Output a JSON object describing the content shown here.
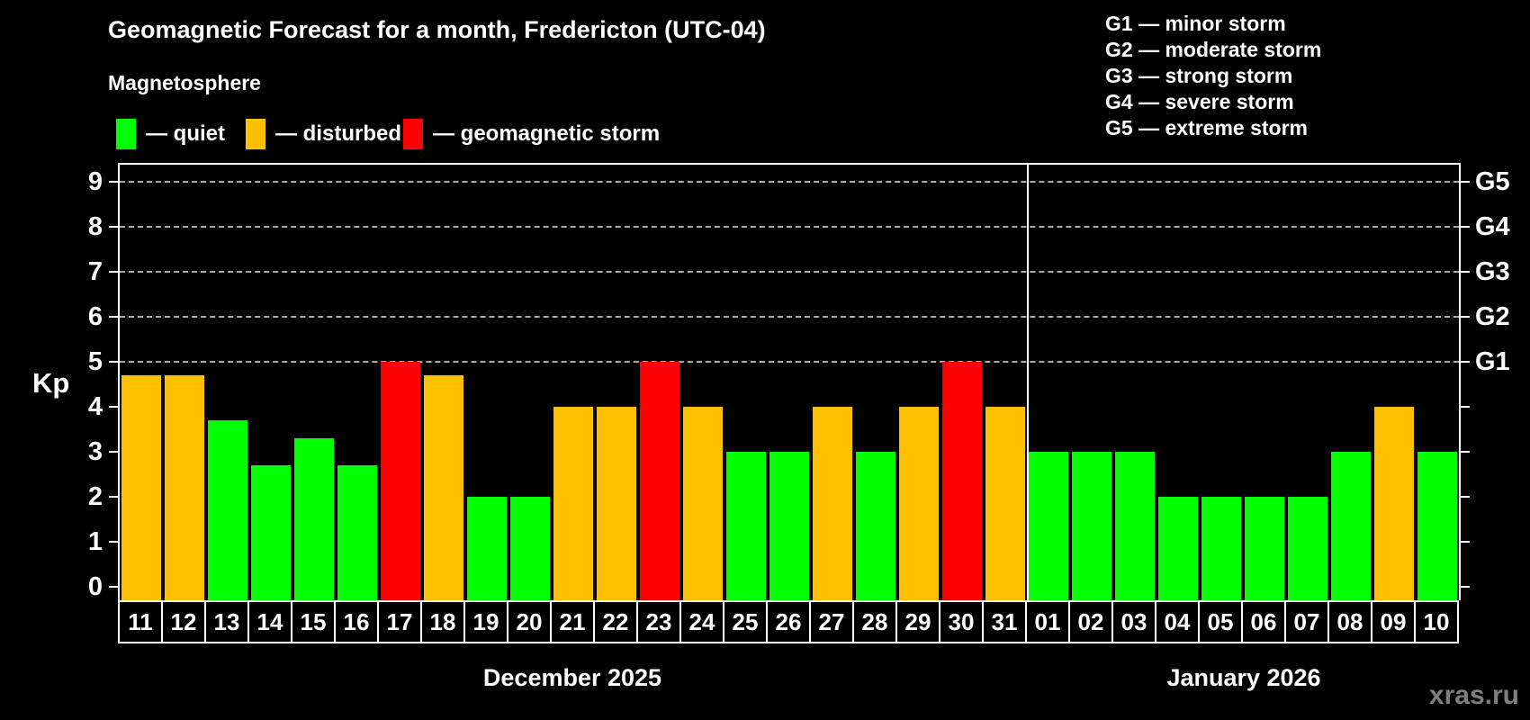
{
  "title": "Geomagnetic Forecast for a month, Fredericton (UTC-04)",
  "subtitle": "Magnetosphere",
  "legend": {
    "items": [
      {
        "key": "quiet",
        "label": "— quiet",
        "color": "#00ff00"
      },
      {
        "key": "disturbed",
        "label": "— disturbed",
        "color": "#ffc000"
      },
      {
        "key": "storm",
        "label": "— geomagnetic storm",
        "color": "#ff0000"
      }
    ]
  },
  "g_legend": {
    "items": [
      "G1 — minor storm",
      "G2 — moderate storm",
      "G3 — strong storm",
      "G4 — severe storm",
      "G5 — extreme storm"
    ]
  },
  "axis": {
    "ylabel": "Kp",
    "yticks": [
      0,
      1,
      2,
      3,
      4,
      5,
      6,
      7,
      8,
      9
    ],
    "gridlines_at": [
      5,
      6,
      7,
      8,
      9
    ],
    "right_labels": [
      {
        "kp": 5,
        "label": "G1"
      },
      {
        "kp": 6,
        "label": "G2"
      },
      {
        "kp": 7,
        "label": "G3"
      },
      {
        "kp": 8,
        "label": "G4"
      },
      {
        "kp": 9,
        "label": "G5"
      }
    ]
  },
  "watermark": "xras.ru",
  "chart_data": {
    "type": "bar",
    "title": "Geomagnetic Forecast for a month, Fredericton (UTC-04)",
    "subtitle": "Magnetosphere",
    "ylabel": "Kp",
    "ylim": [
      0,
      9.4
    ],
    "grid": "dashed horizontal lines at Kp 5,6,7,8,9 (storm levels G1–G5)",
    "legend_position": "top",
    "colors": {
      "quiet": "#00ff00",
      "disturbed": "#ffc000",
      "storm": "#ff0000"
    },
    "months": [
      {
        "label": "December 2025",
        "days": [
          {
            "day": "11",
            "kp": 4.7,
            "status": "disturbed"
          },
          {
            "day": "12",
            "kp": 4.7,
            "status": "disturbed"
          },
          {
            "day": "13",
            "kp": 3.7,
            "status": "quiet"
          },
          {
            "day": "14",
            "kp": 2.7,
            "status": "quiet"
          },
          {
            "day": "15",
            "kp": 3.3,
            "status": "quiet"
          },
          {
            "day": "16",
            "kp": 2.7,
            "status": "quiet"
          },
          {
            "day": "17",
            "kp": 5.0,
            "status": "storm"
          },
          {
            "day": "18",
            "kp": 4.7,
            "status": "disturbed"
          },
          {
            "day": "19",
            "kp": 2.0,
            "status": "quiet"
          },
          {
            "day": "20",
            "kp": 2.0,
            "status": "quiet"
          },
          {
            "day": "21",
            "kp": 4.0,
            "status": "disturbed"
          },
          {
            "day": "22",
            "kp": 4.0,
            "status": "disturbed"
          },
          {
            "day": "23",
            "kp": 5.0,
            "status": "storm"
          },
          {
            "day": "24",
            "kp": 4.0,
            "status": "disturbed"
          },
          {
            "day": "25",
            "kp": 3.0,
            "status": "quiet"
          },
          {
            "day": "26",
            "kp": 3.0,
            "status": "quiet"
          },
          {
            "day": "27",
            "kp": 4.0,
            "status": "disturbed"
          },
          {
            "day": "28",
            "kp": 3.0,
            "status": "quiet"
          },
          {
            "day": "29",
            "kp": 4.0,
            "status": "disturbed"
          },
          {
            "day": "30",
            "kp": 5.0,
            "status": "storm"
          },
          {
            "day": "31",
            "kp": 4.0,
            "status": "disturbed"
          }
        ]
      },
      {
        "label": "January 2026",
        "days": [
          {
            "day": "01",
            "kp": 3.0,
            "status": "quiet"
          },
          {
            "day": "02",
            "kp": 3.0,
            "status": "quiet"
          },
          {
            "day": "03",
            "kp": 3.0,
            "status": "quiet"
          },
          {
            "day": "04",
            "kp": 2.0,
            "status": "quiet"
          },
          {
            "day": "05",
            "kp": 2.0,
            "status": "quiet"
          },
          {
            "day": "06",
            "kp": 2.0,
            "status": "quiet"
          },
          {
            "day": "07",
            "kp": 2.0,
            "status": "quiet"
          },
          {
            "day": "08",
            "kp": 3.0,
            "status": "quiet"
          },
          {
            "day": "09",
            "kp": 4.0,
            "status": "disturbed"
          },
          {
            "day": "10",
            "kp": 3.0,
            "status": "quiet"
          }
        ]
      }
    ]
  }
}
